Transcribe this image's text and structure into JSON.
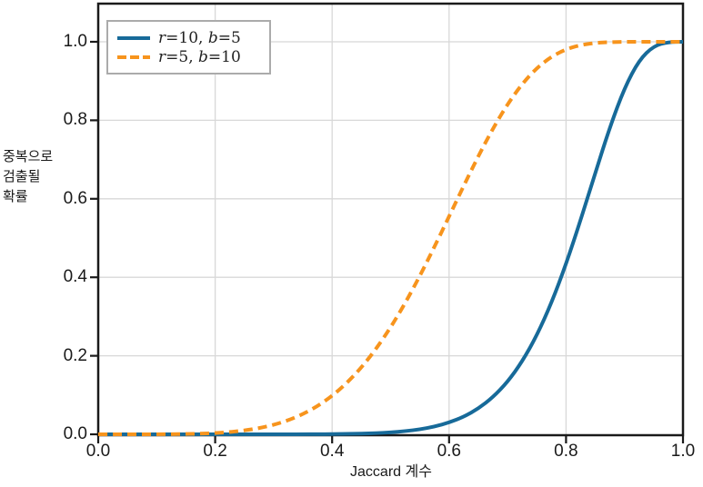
{
  "figure": {
    "background": "#ffffff",
    "ylabel_lines": [
      "중복으로",
      "검출될",
      "확률"
    ],
    "xlabel": "Jaccard 계수"
  },
  "chart_data": {
    "type": "line",
    "title": "",
    "xlabel": "Jaccard 계수",
    "ylabel": "중복으로 검출될 확률",
    "xlim": [
      0,
      1
    ],
    "ylim": [
      0,
      1.09
    ],
    "grid": true,
    "grid_color": "#d8d8d8",
    "spine_color": "#1a1a1a",
    "tick_color": "#1a1a1a",
    "legend_position": "upper left",
    "xticks": {
      "values": [
        0,
        0.2,
        0.4,
        0.6,
        0.8,
        1.0
      ],
      "labels": [
        "0.0",
        "0.2",
        "0.4",
        "0.6",
        "0.8",
        "1.0"
      ]
    },
    "yticks": {
      "values": [
        0,
        0.2,
        0.4,
        0.6,
        0.8,
        1.0
      ],
      "labels": [
        "0.0",
        "0.2",
        "0.4",
        "0.6",
        "0.8",
        "1.0"
      ]
    },
    "x": [
      0,
      0.025,
      0.05,
      0.075,
      0.1,
      0.125,
      0.15,
      0.175,
      0.2,
      0.225,
      0.25,
      0.275,
      0.3,
      0.325,
      0.35,
      0.375,
      0.4,
      0.425,
      0.45,
      0.475,
      0.5,
      0.525,
      0.55,
      0.575,
      0.6,
      0.625,
      0.65,
      0.675,
      0.7,
      0.725,
      0.75,
      0.775,
      0.8,
      0.825,
      0.85,
      0.875,
      0.9,
      0.925,
      0.95,
      0.975,
      1
    ],
    "series": [
      {
        "name": "r=10, b=5",
        "r": 10,
        "b": 5,
        "color": "#176a99",
        "style": "solid",
        "label_parts": [
          {
            "t": "r",
            "i": true
          },
          {
            "t": "=10, ",
            "i": false
          },
          {
            "t": "b",
            "i": true
          },
          {
            "t": "=5",
            "i": false
          }
        ],
        "values": [
          0,
          0,
          0,
          0,
          0,
          0,
          0,
          0,
          0,
          0,
          0,
          0,
          0,
          0.0001,
          0.0001,
          0.0003,
          0.0005,
          0.001,
          0.0017,
          0.0029,
          0.0049,
          0.0079,
          0.0126,
          0.0196,
          0.0299,
          0.0446,
          0.0655,
          0.0945,
          0.1335,
          0.1852,
          0.2516,
          0.3342,
          0.4333,
          0.5462,
          0.6659,
          0.7826,
          0.8828,
          0.9534,
          0.9896,
          0.9994,
          1
        ]
      },
      {
        "name": "r=5, b=10",
        "r": 5,
        "b": 10,
        "color": "#f7941d",
        "style": "dashed",
        "label_parts": [
          {
            "t": "r",
            "i": true
          },
          {
            "t": "=5, ",
            "i": false
          },
          {
            "t": "b",
            "i": true
          },
          {
            "t": "=10",
            "i": false
          }
        ],
        "values": [
          0,
          0,
          0,
          0,
          0.0001,
          0.0003,
          0.0008,
          0.0016,
          0.0032,
          0.0057,
          0.0097,
          0.0156,
          0.024,
          0.0357,
          0.0513,
          0.0717,
          0.0978,
          0.1304,
          0.1699,
          0.2172,
          0.272,
          0.3344,
          0.4033,
          0.4777,
          0.5549,
          0.6331,
          0.7087,
          0.7792,
          0.8412,
          0.893,
          0.9334,
          0.9623,
          0.9811,
          0.9919,
          0.9972,
          0.9992,
          0.9999,
          1,
          1,
          1,
          1
        ]
      }
    ]
  }
}
